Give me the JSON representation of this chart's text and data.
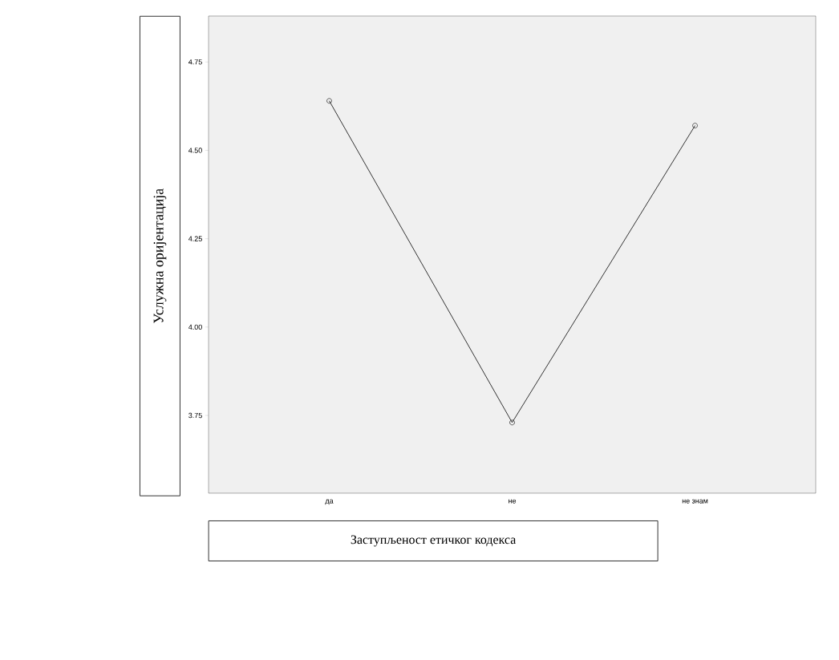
{
  "chart_data": {
    "type": "line",
    "xlabel": "Заступљеност етичког кодекса",
    "ylabel": "Услужна оријентација",
    "categories": [
      "да",
      "не",
      "не знам"
    ],
    "values": [
      4.64,
      3.73,
      4.57
    ],
    "color": "#333333",
    "marker": "circle",
    "ylim": [
      3.53,
      4.88
    ],
    "yticks": [
      {
        "value": 3.75,
        "label": "3.75"
      },
      {
        "value": 4.0,
        "label": "4.00"
      },
      {
        "value": 4.25,
        "label": "4.25"
      },
      {
        "value": 4.5,
        "label": "4.50"
      },
      {
        "value": 4.75,
        "label": "4.75"
      }
    ]
  }
}
